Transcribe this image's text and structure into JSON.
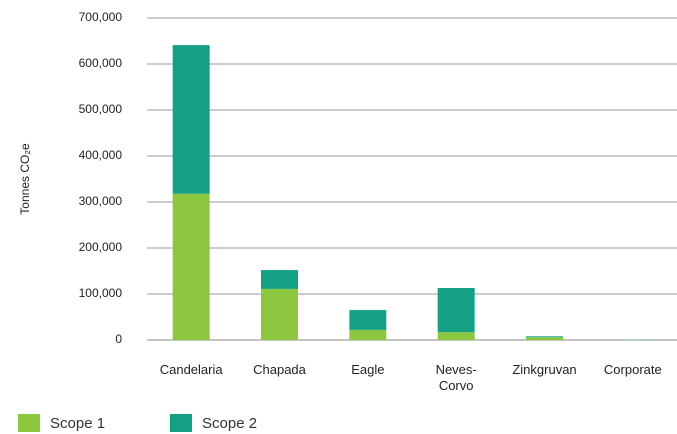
{
  "chart_data": {
    "type": "stacked-bar",
    "y_label": "Tonnes CO₂e",
    "categories": [
      "Candelaria",
      "Chapada",
      "Eagle",
      "Neves-Corvo",
      "Zinkgruvan",
      "Corporate"
    ],
    "series": [
      {
        "name": "Scope 1",
        "color": "#8dc63f",
        "values": [
          318000,
          111000,
          22000,
          17000,
          6000,
          500
        ]
      },
      {
        "name": "Scope 2",
        "color": "#14a085",
        "values": [
          323000,
          41000,
          43000,
          96000,
          2000,
          500
        ]
      }
    ],
    "ylim": [
      0,
      700000
    ],
    "yticks": [
      0,
      {
        "value": 100000,
        "label": "100,000"
      },
      {
        "value": 200000,
        "label": "200,000"
      },
      {
        "value": 300000,
        "label": "300,000"
      },
      {
        "value": 400000,
        "label": "400,000"
      },
      {
        "value": 500000,
        "label": "500,000"
      },
      {
        "value": 600000,
        "label": "600,000"
      },
      {
        "value": 700000,
        "label": "700,000"
      }
    ],
    "grid": true
  }
}
